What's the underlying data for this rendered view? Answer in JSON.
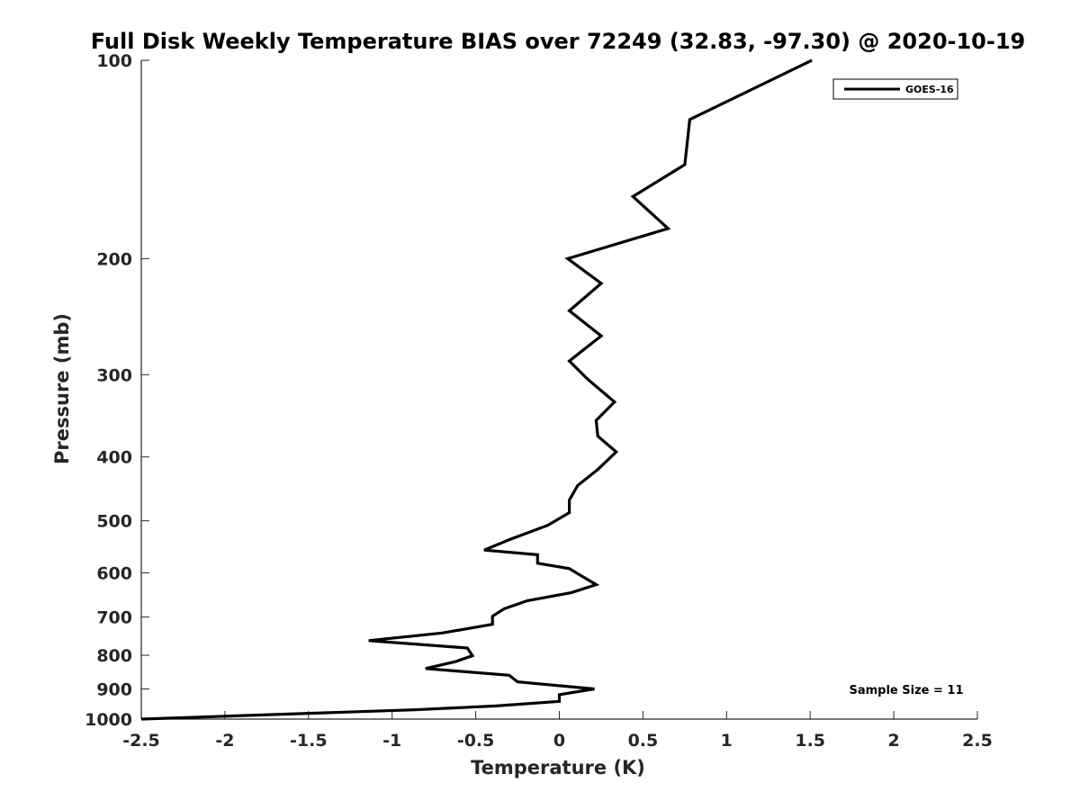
{
  "chart_data": {
    "type": "line",
    "title": "Full Disk Weekly Temperature BIAS over 72249 (32.83, -97.30) @ 2020-10-19",
    "xlabel": "Temperature (K)",
    "ylabel": "Pressure (mb)",
    "xlim": [
      -2.5,
      2.5
    ],
    "ylim": [
      1000,
      100
    ],
    "yscale": "log",
    "x_ticks": [
      -2.5,
      -2,
      -1.5,
      -1,
      -0.5,
      0,
      0.5,
      1,
      1.5,
      2,
      2.5
    ],
    "x_tick_labels": [
      "-2.5",
      "-2",
      "-1.5",
      "-1",
      "-0.5",
      "0",
      "0.5",
      "1",
      "1.5",
      "2",
      "2.5"
    ],
    "y_ticks": [
      100,
      200,
      300,
      400,
      500,
      600,
      700,
      800,
      900,
      1000
    ],
    "y_tick_labels": [
      "100",
      "200",
      "300",
      "400",
      "500",
      "600",
      "700",
      "800",
      "900",
      "1000"
    ],
    "grid": false,
    "legend_position": "top-right",
    "annotation": "Sample Size = 11",
    "series": [
      {
        "name": "GOES-16",
        "color": "#000000",
        "points": [
          [
            1.51,
            100
          ],
          [
            0.78,
            123
          ],
          [
            0.75,
            144
          ],
          [
            0.44,
            161
          ],
          [
            0.65,
            180
          ],
          [
            0.05,
            200
          ],
          [
            0.25,
            218
          ],
          [
            0.06,
            240
          ],
          [
            0.25,
            262
          ],
          [
            0.06,
            286
          ],
          [
            0.17,
            305
          ],
          [
            0.33,
            330
          ],
          [
            0.22,
            352
          ],
          [
            0.23,
            372
          ],
          [
            0.34,
            393
          ],
          [
            0.23,
            418
          ],
          [
            0.11,
            442
          ],
          [
            0.06,
            465
          ],
          [
            0.06,
            486
          ],
          [
            -0.07,
            508
          ],
          [
            -0.29,
            533
          ],
          [
            -0.45,
            554
          ],
          [
            -0.13,
            563
          ],
          [
            -0.13,
            580
          ],
          [
            0.06,
            591
          ],
          [
            0.14,
            608
          ],
          [
            0.22,
            625
          ],
          [
            0.07,
            643
          ],
          [
            -0.19,
            661
          ],
          [
            -0.33,
            680
          ],
          [
            -0.4,
            698
          ],
          [
            -0.4,
            718
          ],
          [
            -0.7,
            740
          ],
          [
            -1.14,
            760
          ],
          [
            -0.55,
            780
          ],
          [
            -0.52,
            801
          ],
          [
            -0.62,
            818
          ],
          [
            -0.8,
            838
          ],
          [
            -0.3,
            858
          ],
          [
            -0.25,
            878
          ],
          [
            0.21,
            900
          ],
          [
            0.0,
            918
          ],
          [
            0.0,
            940
          ],
          [
            -0.38,
            955
          ],
          [
            -0.87,
            968
          ],
          [
            -1.5,
            980
          ],
          [
            -2.0,
            990
          ],
          [
            -2.5,
            1000
          ]
        ]
      }
    ]
  }
}
